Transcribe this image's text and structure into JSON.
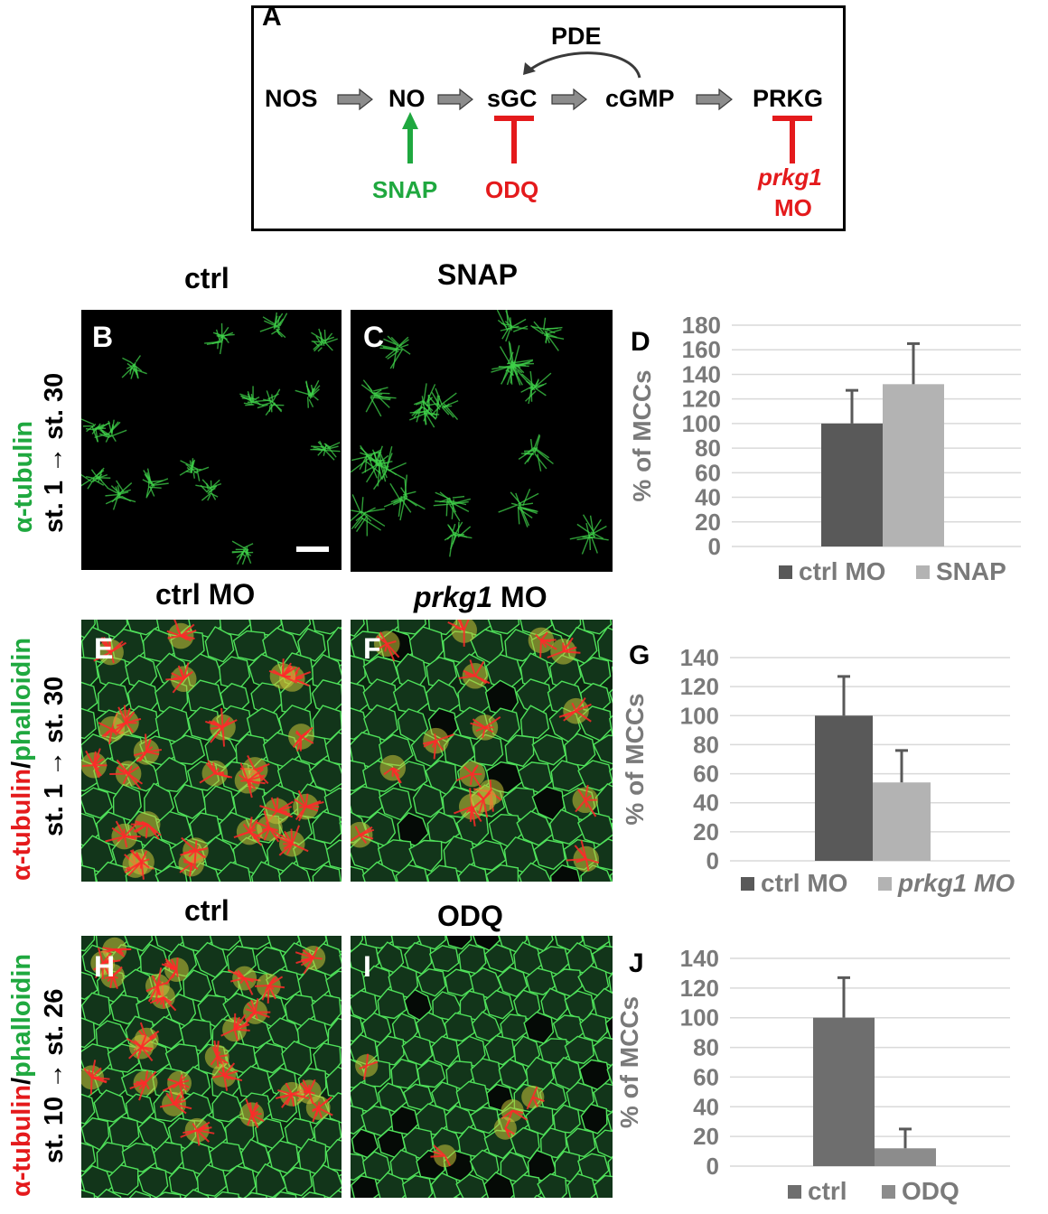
{
  "panel_a": {
    "label": "A",
    "nodes": {
      "nos": "NOS",
      "no": "NO",
      "sgc": "sGC",
      "cgmp": "cGMP",
      "prkg": "PRKG",
      "pde": "PDE"
    },
    "snap": "SNAP",
    "odq": "ODQ",
    "prkg1_italic": "prkg1",
    "prkg1_mo": "MO",
    "colors": {
      "activator": "#1fa83f",
      "inhibitor": "#e41a1c",
      "arrow": "#8c8c8c"
    }
  },
  "row1": {
    "col_left": "ctrl",
    "col_right": "SNAP",
    "label_stain": "α-tubulin",
    "label_stage": "st. 1 → st. 30",
    "panel_b": "B",
    "panel_c": "C"
  },
  "row2": {
    "col_left": "ctrl MO",
    "col_right_italic": "prkg1",
    "col_right_rest": " MO",
    "label_stain_a": "α-tubulin",
    "label_slash": "/",
    "label_stain_b": "phalloidin",
    "label_stage": "st. 1 → st. 30",
    "panel_e": "E",
    "panel_f": "F"
  },
  "row3": {
    "col_left": "ctrl",
    "col_right": "ODQ",
    "label_stain_a": "α-tubulin",
    "label_slash": "/",
    "label_stain_b": "phalloidin",
    "label_stage": "st. 10 → st. 26",
    "panel_h": "H",
    "panel_i": "I"
  },
  "chart_data": [
    {
      "panel": "D",
      "type": "bar",
      "ylabel": "% of MCCs",
      "ylim": [
        0,
        180
      ],
      "yticks": [
        "0",
        "20",
        "40",
        "60",
        "80",
        "100",
        "120",
        "140",
        "160",
        "180"
      ],
      "grid": true,
      "legend_position": "bottom",
      "series": [
        {
          "name": "ctrl MO",
          "value": 100,
          "error": 27,
          "color": "#595959"
        },
        {
          "name": "SNAP",
          "value": 132,
          "error": 33,
          "color": "#b3b3b3"
        }
      ]
    },
    {
      "panel": "G",
      "type": "bar",
      "ylabel": "% of MCCs",
      "ylim": [
        0,
        140
      ],
      "yticks": [
        "0",
        "20",
        "40",
        "60",
        "80",
        "100",
        "120",
        "140"
      ],
      "grid": true,
      "legend_position": "bottom",
      "series": [
        {
          "name": "ctrl MO",
          "value": 100,
          "error": 27,
          "color": "#595959"
        },
        {
          "name": "prkg1 MO",
          "value": 54,
          "error": 22,
          "color": "#b3b3b3"
        }
      ]
    },
    {
      "panel": "J",
      "type": "bar",
      "ylabel": "% of MCCs",
      "ylim": [
        0,
        140
      ],
      "yticks": [
        "0",
        "20",
        "40",
        "60",
        "80",
        "100",
        "120",
        "140"
      ],
      "grid": true,
      "legend_position": "bottom",
      "series": [
        {
          "name": "ctrl",
          "value": 100,
          "error": 27,
          "color": "#6e6e6e"
        },
        {
          "name": "ODQ",
          "value": 12,
          "error": 13,
          "color": "#8c8c8c"
        }
      ]
    }
  ]
}
